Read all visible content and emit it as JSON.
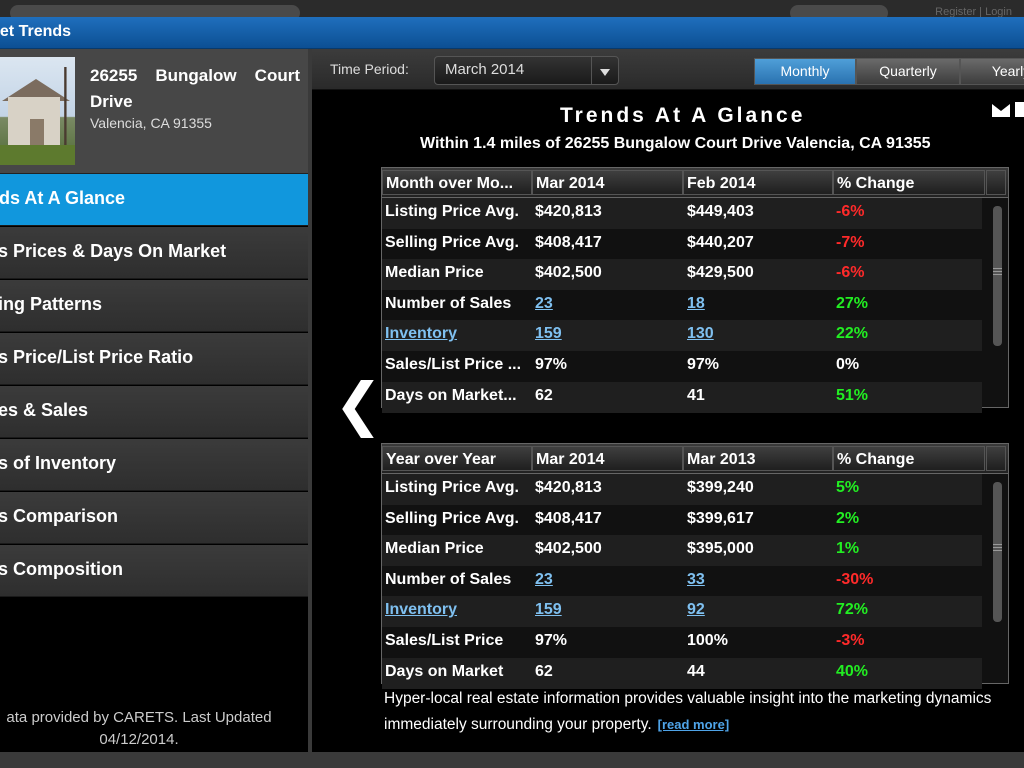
{
  "window": {
    "title": "ket Trends"
  },
  "topbar": {
    "register_login": "Register | Login"
  },
  "property": {
    "address_line1": "26255 Bungalow Court Drive",
    "address_line2": "Valencia, CA  91355"
  },
  "sidebar": {
    "items": [
      {
        "label": "nds At A Glance",
        "active": true
      },
      {
        "label": "es Prices & Days On Market"
      },
      {
        "label": "ying Patterns"
      },
      {
        "label": "es Price/List Price Ratio"
      },
      {
        "label": "ces & Sales"
      },
      {
        "label": "ys of Inventory"
      },
      {
        "label": "es Comparison"
      },
      {
        "label": "es Composition"
      }
    ],
    "credit_line1": "ata provided by CARETS.  Last Updated",
    "credit_line2": "04/12/2014."
  },
  "toolbar": {
    "time_period_label": "Time Period:",
    "time_period_value": "March 2014",
    "periods": [
      "Monthly",
      "Quarterly",
      "Yearly"
    ],
    "active_period": "Monthly"
  },
  "glance": {
    "title": "Trends At A Glance",
    "subtitle": "Within 1.4 miles of 26255 Bungalow Court Drive Valencia, CA 91355"
  },
  "month_table": {
    "headers": [
      "Month over Mo...",
      "Mar 2014",
      "Feb 2014",
      "% Change"
    ],
    "rows": [
      {
        "label": "Listing Price Avg.",
        "a": "$420,813",
        "b": "$449,403",
        "chg": "-6%"
      },
      {
        "label": "Selling Price Avg.",
        "a": "$408,417",
        "b": "$440,207",
        "chg": "-7%"
      },
      {
        "label": "Median Price",
        "a": "$402,500",
        "b": "$429,500",
        "chg": "-6%"
      },
      {
        "label": "Number of Sales",
        "a": "23",
        "b": "18",
        "chg": "27%"
      },
      {
        "label": "Inventory",
        "a": "159",
        "b": "130",
        "chg": "22%"
      },
      {
        "label": "Sales/List Price ...",
        "a": "97%",
        "b": "97%",
        "chg": "0%"
      },
      {
        "label": "Days on Market...",
        "a": "62",
        "b": "41",
        "chg": "51%"
      }
    ]
  },
  "year_table": {
    "headers": [
      "Year over Year",
      "Mar 2014",
      "Mar 2013",
      "% Change"
    ],
    "rows": [
      {
        "label": "Listing Price Avg.",
        "a": "$420,813",
        "b": "$399,240",
        "chg": "5%"
      },
      {
        "label": "Selling Price Avg.",
        "a": "$408,417",
        "b": "$399,617",
        "chg": "2%"
      },
      {
        "label": "Median Price",
        "a": "$402,500",
        "b": "$395,000",
        "chg": "1%"
      },
      {
        "label": "Number of Sales",
        "a": "23",
        "b": "33",
        "chg": "-30%"
      },
      {
        "label": "Inventory",
        "a": "159",
        "b": "92",
        "chg": "72%"
      },
      {
        "label": "Sales/List Price",
        "a": "97%",
        "b": "100%",
        "chg": "-3%"
      },
      {
        "label": "Days on Market",
        "a": "62",
        "b": "44",
        "chg": "40%"
      }
    ]
  },
  "note": {
    "text": "Hyper-local real estate information provides valuable insight into the marketing dynamics immediately surrounding your property.",
    "read_more": "[read more]"
  },
  "colors": {
    "accent": "#1197dd",
    "negative": "#ff2a2a",
    "positive": "#22ee22",
    "link": "#7fc0f0"
  }
}
